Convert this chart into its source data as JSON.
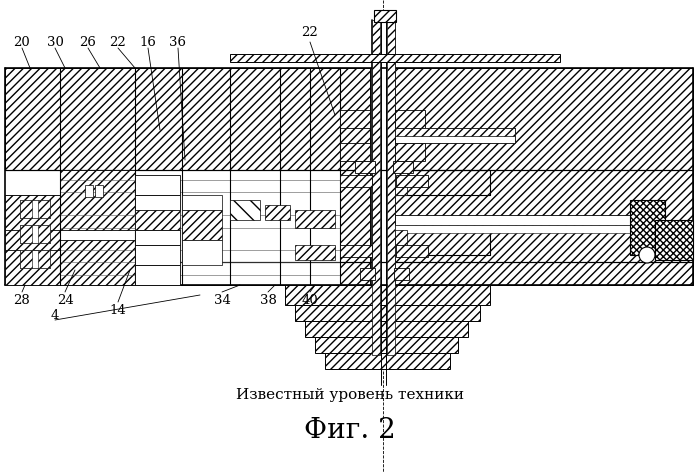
{
  "title": "Фиг. 2",
  "subtitle": "Известный уровень техники",
  "bg": "#ffffff",
  "lc": "#000000",
  "title_fs": 20,
  "sub_fs": 11,
  "lbl_fs": 9.5
}
